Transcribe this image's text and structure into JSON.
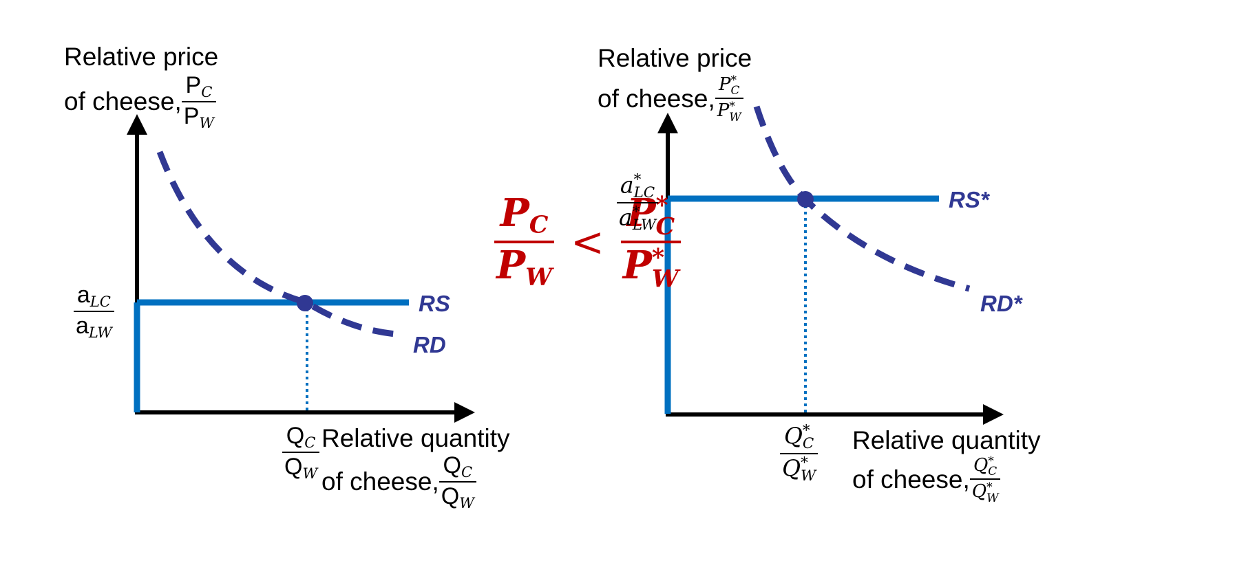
{
  "left_panel": {
    "y_axis_label": {
      "line1": "Relative price",
      "line2": "of cheese, ",
      "num": "P",
      "num_sub": "C",
      "den": "P",
      "den_sub": "W"
    },
    "y_tick": {
      "num": "a",
      "num_sub": "LC",
      "den": "a",
      "den_sub": "LW"
    },
    "x_axis_label": {
      "line1": "Relative quantity",
      "line2": "of cheese, ",
      "num": "Q",
      "num_sub": "C",
      "den": "Q",
      "den_sub": "W"
    },
    "x_tick": {
      "num": "Q",
      "num_sub": "C",
      "den": "Q",
      "den_sub": "W"
    },
    "rs_label": "RS",
    "rd_label": "RD"
  },
  "right_panel": {
    "y_axis_label": {
      "line1": "Relative price",
      "line2": "of cheese,",
      "num": "P",
      "num_sub": "C",
      "num_sup": "*",
      "den": "P",
      "den_sub": "W",
      "den_sup": "*"
    },
    "y_tick": {
      "num": "a",
      "num_sub": "LC",
      "num_sup": "*",
      "den": "a",
      "den_sub": "LW",
      "den_sup": "*"
    },
    "x_axis_label": {
      "line1": "Relative quantity",
      "line2": "of cheese,",
      "num": "Q",
      "num_sub": "C",
      "num_sup": "*",
      "den": "Q",
      "den_sub": "W",
      "den_sup": "*"
    },
    "x_tick": {
      "num": "Q",
      "num_sub": "C",
      "num_sup": "*",
      "den": "Q",
      "den_sub": "W",
      "den_sup": "*"
    },
    "rs_label": "RS*",
    "rd_label": "RD*"
  },
  "inequality": {
    "lhs": {
      "num": "P",
      "num_sub": "C",
      "den": "P",
      "den_sub": "W"
    },
    "op": "<",
    "rhs": {
      "num": "P",
      "num_sub": "C",
      "num_sup": "*",
      "den": "P",
      "den_sub": "W",
      "den_sup": "*"
    }
  },
  "colors": {
    "axis": "#000000",
    "supply_line": "#0070c0",
    "demand_curve": "#303893",
    "equilibrium_point": "#303893",
    "inequality": "#c00000"
  }
}
